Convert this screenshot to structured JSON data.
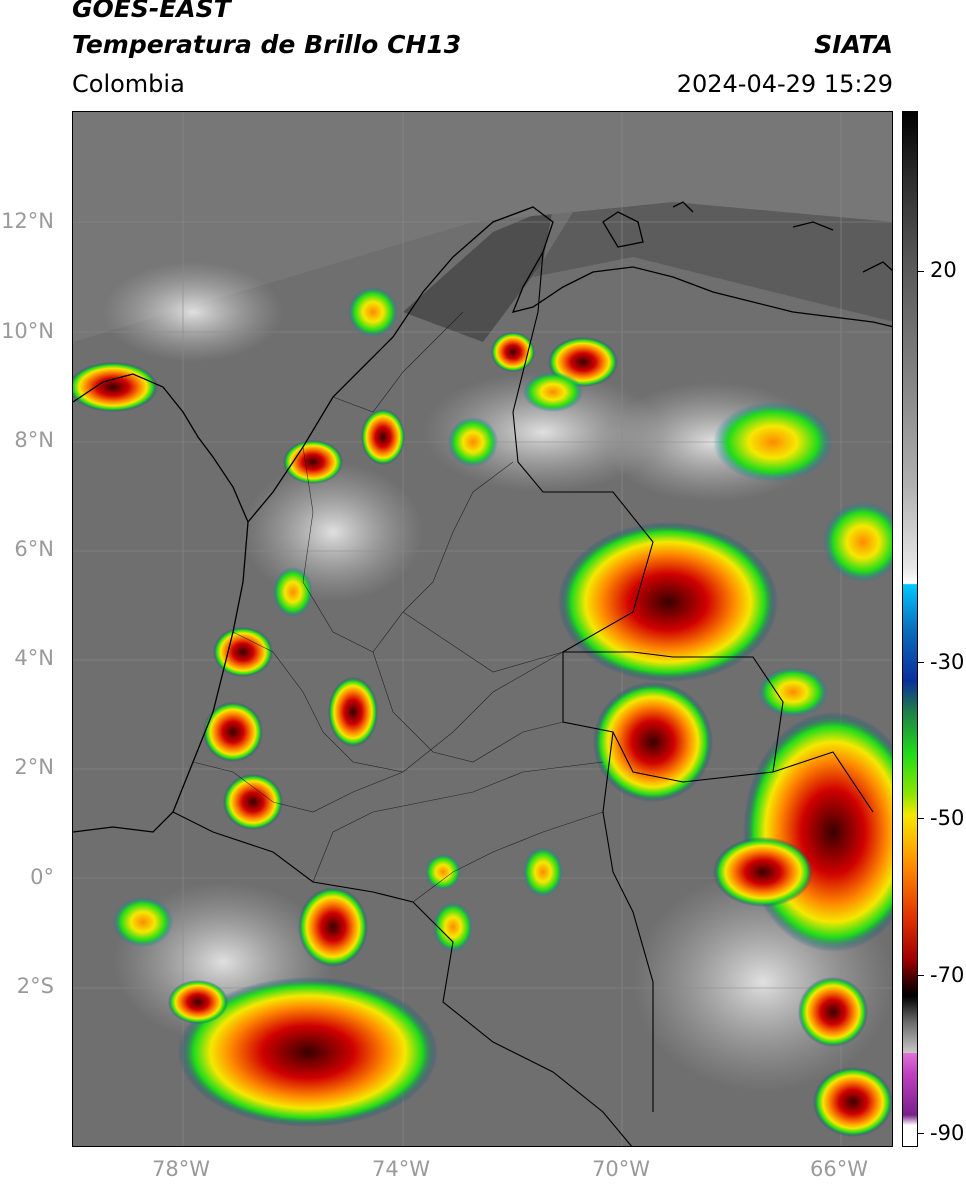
{
  "header": {
    "line1": "GOES-EAST",
    "line2": "Temperatura de Brillo CH13",
    "brand": "SIATA",
    "region": "Colombia",
    "timestamp": "2024-04-29 15:29"
  },
  "map": {
    "lat_labels": [
      "12°N",
      "10°N",
      "8°N",
      "6°N",
      "4°N",
      "2°N",
      "0°",
      "2°S"
    ],
    "lon_labels": [
      "78°W",
      "74°W",
      "70°W",
      "66°W"
    ]
  },
  "colorbar": {
    "labels": [
      "20",
      "-30",
      "-50",
      "-70",
      "-90"
    ],
    "colors": {
      "white": "#ffffff",
      "cyan": "#00c8ff",
      "blue": "#0a2f9c",
      "green": "#1fdc1a",
      "yellow": "#f5e800",
      "orange": "#ff8a00",
      "red": "#d00000",
      "darkred": "#3a0000",
      "magenta": "#e070d8",
      "purple": "#7b1f8c"
    }
  }
}
